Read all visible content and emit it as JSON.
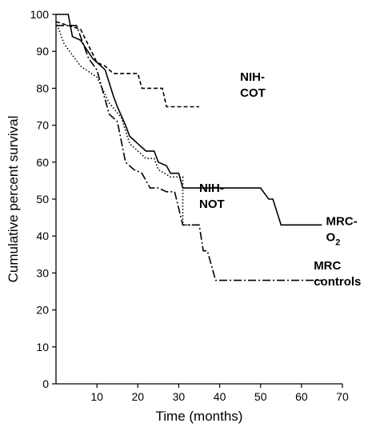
{
  "chart_data": {
    "type": "line",
    "title": "",
    "xlabel": "Time (months)",
    "ylabel": "Cumulative percent survival",
    "xlim": [
      0,
      70
    ],
    "ylim": [
      0,
      100
    ],
    "xticks": [
      10,
      20,
      30,
      40,
      50,
      60,
      70
    ],
    "yticks": [
      0,
      10,
      20,
      30,
      40,
      50,
      60,
      70,
      80,
      90,
      100
    ],
    "grid": false,
    "legend": "direct labels",
    "colors": {
      "line": "#000000",
      "background": "#ffffff"
    },
    "series": [
      {
        "name": "NIH-COT",
        "label_lines": [
          "NIH-",
          "COT"
        ],
        "dash": "dashed",
        "points": [
          [
            0,
            98
          ],
          [
            6,
            96
          ],
          [
            10,
            87
          ],
          [
            12,
            86
          ],
          [
            14,
            84
          ],
          [
            20,
            84
          ],
          [
            21,
            80
          ],
          [
            26,
            80
          ],
          [
            27,
            75
          ],
          [
            35,
            75
          ]
        ]
      },
      {
        "name": "NIH-NOT",
        "label_lines": [
          "NIH-",
          "NOT"
        ],
        "dash": "dotted",
        "points": [
          [
            0,
            98
          ],
          [
            2,
            92
          ],
          [
            6,
            86
          ],
          [
            10,
            83
          ],
          [
            13,
            76
          ],
          [
            16,
            72
          ],
          [
            18,
            65
          ],
          [
            20,
            63
          ],
          [
            22,
            61
          ],
          [
            24,
            61
          ],
          [
            25,
            58
          ],
          [
            28,
            56
          ],
          [
            31,
            56
          ],
          [
            31,
            43
          ],
          [
            33,
            43
          ]
        ]
      },
      {
        "name": "MRC-O2",
        "label_lines": [
          "MRC-",
          "O",
          "2"
        ],
        "dash": "solid",
        "points": [
          [
            0,
            100
          ],
          [
            3,
            100
          ],
          [
            4,
            94
          ],
          [
            6,
            93
          ],
          [
            9,
            88
          ],
          [
            12,
            85
          ],
          [
            14,
            78
          ],
          [
            15,
            75
          ],
          [
            17,
            70
          ],
          [
            18,
            67
          ],
          [
            20,
            65
          ],
          [
            22,
            63
          ],
          [
            24,
            63
          ],
          [
            25,
            60
          ],
          [
            27,
            59
          ],
          [
            28,
            57
          ],
          [
            30,
            57
          ],
          [
            31,
            53
          ],
          [
            50,
            53
          ],
          [
            52,
            50
          ],
          [
            53,
            50
          ],
          [
            55,
            43
          ],
          [
            65,
            43
          ]
        ]
      },
      {
        "name": "MRC controls",
        "label_lines": [
          "MRC",
          "controls"
        ],
        "dash": "dashdot",
        "points": [
          [
            0,
            97
          ],
          [
            5,
            97
          ],
          [
            8,
            88
          ],
          [
            10,
            85
          ],
          [
            13,
            73
          ],
          [
            15,
            71
          ],
          [
            17,
            60
          ],
          [
            19,
            58
          ],
          [
            21,
            57
          ],
          [
            23,
            53
          ],
          [
            25,
            53
          ],
          [
            27,
            52
          ],
          [
            29,
            52
          ],
          [
            31,
            43
          ],
          [
            33,
            43
          ],
          [
            35,
            43
          ],
          [
            36,
            36
          ],
          [
            37,
            36
          ],
          [
            39,
            28
          ],
          [
            65,
            28
          ]
        ]
      }
    ]
  }
}
